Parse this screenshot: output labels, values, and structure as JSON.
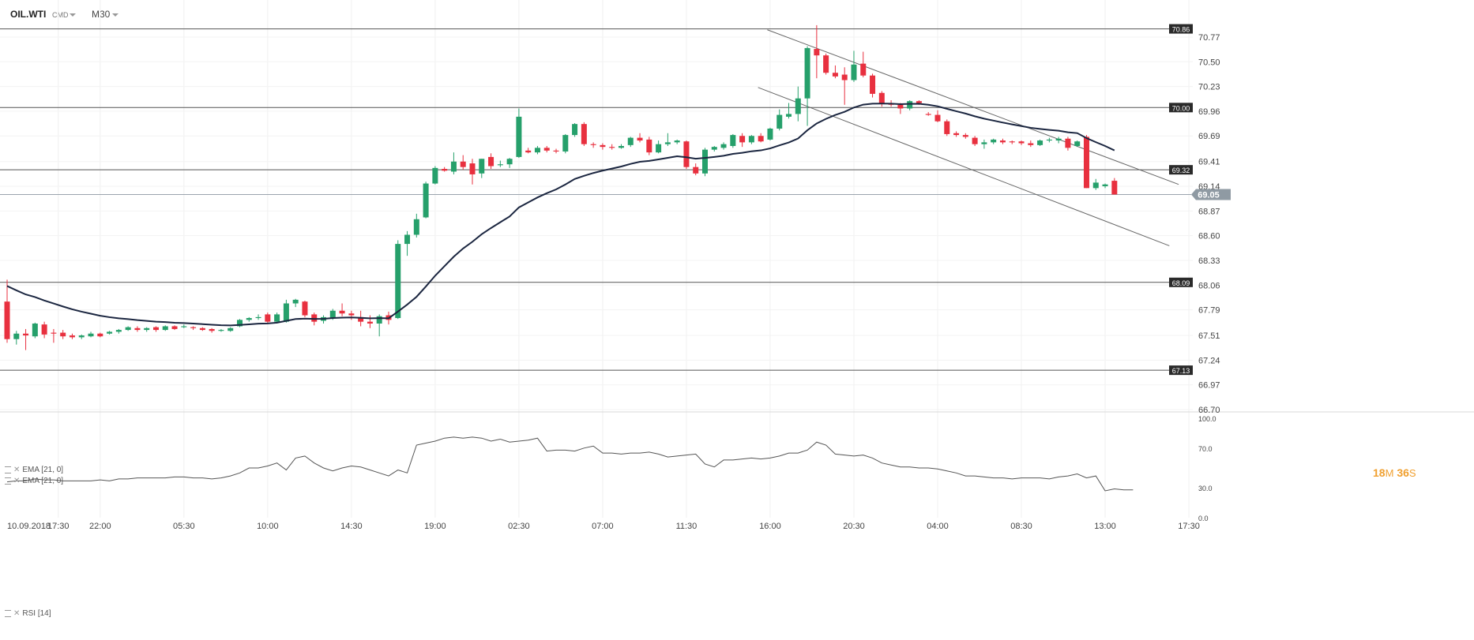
{
  "header": {
    "symbol": "OIL.WTI",
    "type": "CMD",
    "timeframe": "M30"
  },
  "price_indicators": [
    {
      "label": "EMA [21, 0]"
    },
    {
      "label": "EMA [21, 0]"
    }
  ],
  "rsi_indicator": {
    "label": "RSI [14]"
  },
  "countdown": {
    "minutes": "18",
    "min_unit": "M",
    "seconds": "36",
    "sec_unit": "S"
  },
  "colors": {
    "up": "#26a06b",
    "down": "#e8303f",
    "ema": "#1b2640",
    "level": "#555555",
    "tag_bg": "#2a2a2a",
    "current_tag_bg": "#8f9aa3"
  },
  "chart_data": {
    "type": "candlestick",
    "symbol": "OIL.WTI",
    "timeframe": "M30",
    "y_ticks": [
      70.77,
      70.5,
      70.23,
      69.96,
      69.69,
      69.41,
      69.14,
      68.87,
      68.6,
      68.33,
      68.06,
      67.79,
      67.51,
      67.24,
      66.97,
      66.7
    ],
    "ylim": [
      66.7,
      70.91
    ],
    "x_tick_labels": [
      {
        "label": "10.09.2018",
        "index": 0
      },
      {
        "label": "17:30",
        "index": 5.5
      },
      {
        "label": "22:00",
        "index": 10
      },
      {
        "label": "05:30",
        "index": 19
      },
      {
        "label": "10:00",
        "index": 28
      },
      {
        "label": "14:30",
        "index": 37
      },
      {
        "label": "19:00",
        "index": 46
      },
      {
        "label": "02:30",
        "index": 55
      },
      {
        "label": "07:00",
        "index": 64
      },
      {
        "label": "11:30",
        "index": 73
      },
      {
        "label": "16:00",
        "index": 82
      },
      {
        "label": "20:30",
        "index": 91
      },
      {
        "label": "04:00",
        "index": 100
      },
      {
        "label": "08:30",
        "index": 109
      },
      {
        "label": "13:00",
        "index": 118
      },
      {
        "label": "17:30",
        "index": 127
      }
    ],
    "horizontal_levels": [
      70.86,
      70.0,
      69.32,
      68.09,
      67.13
    ],
    "current_price": 69.05,
    "trend_lines": [
      {
        "from": [
          81.7,
          70.85
        ],
        "to": [
          125.9,
          69.16
        ]
      },
      {
        "from": [
          80.7,
          70.22
        ],
        "to": [
          124.9,
          68.49
        ]
      }
    ],
    "candles": [
      {
        "o": 67.88,
        "h": 68.12,
        "l": 67.43,
        "c": 67.47
      },
      {
        "o": 67.47,
        "h": 67.56,
        "l": 67.41,
        "c": 67.53
      },
      {
        "o": 67.53,
        "h": 67.58,
        "l": 67.35,
        "c": 67.51
      },
      {
        "o": 67.5,
        "h": 67.65,
        "l": 67.48,
        "c": 67.64
      },
      {
        "o": 67.63,
        "h": 67.66,
        "l": 67.48,
        "c": 67.52
      },
      {
        "o": 67.54,
        "h": 67.58,
        "l": 67.43,
        "c": 67.53
      },
      {
        "o": 67.54,
        "h": 67.57,
        "l": 67.47,
        "c": 67.5
      },
      {
        "o": 67.51,
        "h": 67.53,
        "l": 67.47,
        "c": 67.49
      },
      {
        "o": 67.49,
        "h": 67.52,
        "l": 67.47,
        "c": 67.51
      },
      {
        "o": 67.5,
        "h": 67.55,
        "l": 67.49,
        "c": 67.53
      },
      {
        "o": 67.53,
        "h": 67.54,
        "l": 67.49,
        "c": 67.5
      },
      {
        "o": 67.53,
        "h": 67.56,
        "l": 67.52,
        "c": 67.55
      },
      {
        "o": 67.55,
        "h": 67.58,
        "l": 67.53,
        "c": 67.57
      },
      {
        "o": 67.57,
        "h": 67.61,
        "l": 67.56,
        "c": 67.6
      },
      {
        "o": 67.59,
        "h": 67.61,
        "l": 67.55,
        "c": 67.57
      },
      {
        "o": 67.57,
        "h": 67.6,
        "l": 67.55,
        "c": 67.59
      },
      {
        "o": 67.6,
        "h": 67.61,
        "l": 67.55,
        "c": 67.57
      },
      {
        "o": 67.57,
        "h": 67.62,
        "l": 67.56,
        "c": 67.61
      },
      {
        "o": 67.61,
        "h": 67.62,
        "l": 67.57,
        "c": 67.58
      },
      {
        "o": 67.6,
        "h": 67.63,
        "l": 67.59,
        "c": 67.61
      },
      {
        "o": 67.6,
        "h": 67.61,
        "l": 67.57,
        "c": 67.59
      },
      {
        "o": 67.59,
        "h": 67.6,
        "l": 67.56,
        "c": 67.57
      },
      {
        "o": 67.58,
        "h": 67.59,
        "l": 67.54,
        "c": 67.56
      },
      {
        "o": 67.56,
        "h": 67.58,
        "l": 67.55,
        "c": 67.57
      },
      {
        "o": 67.56,
        "h": 67.6,
        "l": 67.55,
        "c": 67.59
      },
      {
        "o": 67.61,
        "h": 67.69,
        "l": 67.6,
        "c": 67.68
      },
      {
        "o": 67.68,
        "h": 67.71,
        "l": 67.66,
        "c": 67.7
      },
      {
        "o": 67.7,
        "h": 67.74,
        "l": 67.68,
        "c": 67.71
      },
      {
        "o": 67.74,
        "h": 67.76,
        "l": 67.64,
        "c": 67.66
      },
      {
        "o": 67.66,
        "h": 67.76,
        "l": 67.64,
        "c": 67.74
      },
      {
        "o": 67.66,
        "h": 67.9,
        "l": 67.65,
        "c": 67.86
      },
      {
        "o": 67.86,
        "h": 67.91,
        "l": 67.82,
        "c": 67.9
      },
      {
        "o": 67.88,
        "h": 67.89,
        "l": 67.71,
        "c": 67.73
      },
      {
        "o": 67.74,
        "h": 67.76,
        "l": 67.62,
        "c": 67.66
      },
      {
        "o": 67.67,
        "h": 67.73,
        "l": 67.64,
        "c": 67.71
      },
      {
        "o": 67.7,
        "h": 67.8,
        "l": 67.68,
        "c": 67.78
      },
      {
        "o": 67.78,
        "h": 67.86,
        "l": 67.72,
        "c": 67.75
      },
      {
        "o": 67.75,
        "h": 67.78,
        "l": 67.68,
        "c": 67.73
      },
      {
        "o": 67.71,
        "h": 67.78,
        "l": 67.61,
        "c": 67.66
      },
      {
        "o": 67.66,
        "h": 67.73,
        "l": 67.59,
        "c": 67.64
      },
      {
        "o": 67.64,
        "h": 67.74,
        "l": 67.5,
        "c": 67.72
      },
      {
        "o": 67.73,
        "h": 67.77,
        "l": 67.63,
        "c": 67.68
      },
      {
        "o": 67.7,
        "h": 68.55,
        "l": 67.69,
        "c": 68.51
      },
      {
        "o": 68.51,
        "h": 68.65,
        "l": 68.38,
        "c": 68.61
      },
      {
        "o": 68.61,
        "h": 68.84,
        "l": 68.58,
        "c": 68.78
      },
      {
        "o": 68.8,
        "h": 69.19,
        "l": 68.79,
        "c": 69.17
      },
      {
        "o": 69.17,
        "h": 69.36,
        "l": 69.16,
        "c": 69.34
      },
      {
        "o": 69.33,
        "h": 69.35,
        "l": 69.3,
        "c": 69.31
      },
      {
        "o": 69.3,
        "h": 69.51,
        "l": 69.27,
        "c": 69.41
      },
      {
        "o": 69.41,
        "h": 69.48,
        "l": 69.32,
        "c": 69.35
      },
      {
        "o": 69.39,
        "h": 69.44,
        "l": 69.16,
        "c": 69.27
      },
      {
        "o": 69.28,
        "h": 69.44,
        "l": 69.23,
        "c": 69.44
      },
      {
        "o": 69.46,
        "h": 69.5,
        "l": 69.33,
        "c": 69.36
      },
      {
        "o": 69.37,
        "h": 69.42,
        "l": 69.35,
        "c": 69.38
      },
      {
        "o": 69.38,
        "h": 69.45,
        "l": 69.34,
        "c": 69.44
      },
      {
        "o": 69.46,
        "h": 69.99,
        "l": 69.45,
        "c": 69.9
      },
      {
        "o": 69.53,
        "h": 69.56,
        "l": 69.5,
        "c": 69.51
      },
      {
        "o": 69.51,
        "h": 69.58,
        "l": 69.49,
        "c": 69.56
      },
      {
        "o": 69.56,
        "h": 69.58,
        "l": 69.51,
        "c": 69.53
      },
      {
        "o": 69.53,
        "h": 69.55,
        "l": 69.5,
        "c": 69.52
      },
      {
        "o": 69.52,
        "h": 69.71,
        "l": 69.5,
        "c": 69.7
      },
      {
        "o": 69.7,
        "h": 69.83,
        "l": 69.68,
        "c": 69.82
      },
      {
        "o": 69.82,
        "h": 69.84,
        "l": 69.58,
        "c": 69.6
      },
      {
        "o": 69.6,
        "h": 69.62,
        "l": 69.56,
        "c": 69.59
      },
      {
        "o": 69.59,
        "h": 69.61,
        "l": 69.54,
        "c": 69.57
      },
      {
        "o": 69.57,
        "h": 69.6,
        "l": 69.54,
        "c": 69.56
      },
      {
        "o": 69.56,
        "h": 69.6,
        "l": 69.55,
        "c": 69.58
      },
      {
        "o": 69.59,
        "h": 69.68,
        "l": 69.57,
        "c": 69.67
      },
      {
        "o": 69.67,
        "h": 69.72,
        "l": 69.62,
        "c": 69.64
      },
      {
        "o": 69.65,
        "h": 69.68,
        "l": 69.48,
        "c": 69.51
      },
      {
        "o": 69.51,
        "h": 69.64,
        "l": 69.5,
        "c": 69.6
      },
      {
        "o": 69.6,
        "h": 69.72,
        "l": 69.58,
        "c": 69.62
      },
      {
        "o": 69.62,
        "h": 69.65,
        "l": 69.6,
        "c": 69.64
      },
      {
        "o": 69.63,
        "h": 69.64,
        "l": 69.33,
        "c": 69.35
      },
      {
        "o": 69.35,
        "h": 69.39,
        "l": 69.26,
        "c": 69.28
      },
      {
        "o": 69.28,
        "h": 69.56,
        "l": 69.25,
        "c": 69.54
      },
      {
        "o": 69.54,
        "h": 69.58,
        "l": 69.52,
        "c": 69.57
      },
      {
        "o": 69.56,
        "h": 69.62,
        "l": 69.54,
        "c": 69.6
      },
      {
        "o": 69.58,
        "h": 69.71,
        "l": 69.56,
        "c": 69.7
      },
      {
        "o": 69.69,
        "h": 69.72,
        "l": 69.57,
        "c": 69.62
      },
      {
        "o": 69.62,
        "h": 69.7,
        "l": 69.6,
        "c": 69.69
      },
      {
        "o": 69.69,
        "h": 69.72,
        "l": 69.62,
        "c": 69.63
      },
      {
        "o": 69.65,
        "h": 69.78,
        "l": 69.64,
        "c": 69.77
      },
      {
        "o": 69.77,
        "h": 69.98,
        "l": 69.75,
        "c": 69.92
      },
      {
        "o": 69.9,
        "h": 70.05,
        "l": 69.88,
        "c": 69.93
      },
      {
        "o": 69.93,
        "h": 70.23,
        "l": 69.85,
        "c": 70.1
      },
      {
        "o": 70.1,
        "h": 70.67,
        "l": 69.8,
        "c": 70.65
      },
      {
        "o": 70.64,
        "h": 70.9,
        "l": 70.32,
        "c": 70.57
      },
      {
        "o": 70.57,
        "h": 70.59,
        "l": 70.36,
        "c": 70.38
      },
      {
        "o": 70.38,
        "h": 70.46,
        "l": 70.32,
        "c": 70.34
      },
      {
        "o": 70.36,
        "h": 70.44,
        "l": 70.03,
        "c": 70.3
      },
      {
        "o": 70.3,
        "h": 70.62,
        "l": 70.28,
        "c": 70.47
      },
      {
        "o": 70.48,
        "h": 70.61,
        "l": 70.33,
        "c": 70.35
      },
      {
        "o": 70.35,
        "h": 70.37,
        "l": 70.11,
        "c": 70.15
      },
      {
        "o": 70.16,
        "h": 70.18,
        "l": 70.01,
        "c": 70.05
      },
      {
        "o": 70.05,
        "h": 70.08,
        "l": 70.01,
        "c": 70.03
      },
      {
        "o": 70.03,
        "h": 70.05,
        "l": 69.93,
        "c": 69.99
      },
      {
        "o": 69.99,
        "h": 70.08,
        "l": 69.97,
        "c": 70.07
      },
      {
        "o": 70.07,
        "h": 70.08,
        "l": 70.03,
        "c": 70.05
      },
      {
        "o": 69.93,
        "h": 69.95,
        "l": 69.91,
        "c": 69.92
      },
      {
        "o": 69.92,
        "h": 69.97,
        "l": 69.84,
        "c": 69.85
      },
      {
        "o": 69.85,
        "h": 69.87,
        "l": 69.69,
        "c": 69.71
      },
      {
        "o": 69.72,
        "h": 69.74,
        "l": 69.68,
        "c": 69.7
      },
      {
        "o": 69.7,
        "h": 69.72,
        "l": 69.66,
        "c": 69.68
      },
      {
        "o": 69.67,
        "h": 69.69,
        "l": 69.58,
        "c": 69.6
      },
      {
        "o": 69.6,
        "h": 69.65,
        "l": 69.55,
        "c": 69.62
      },
      {
        "o": 69.62,
        "h": 69.66,
        "l": 69.6,
        "c": 69.65
      },
      {
        "o": 69.64,
        "h": 69.66,
        "l": 69.6,
        "c": 69.62
      },
      {
        "o": 69.63,
        "h": 69.64,
        "l": 69.6,
        "c": 69.62
      },
      {
        "o": 69.63,
        "h": 69.64,
        "l": 69.59,
        "c": 69.61
      },
      {
        "o": 69.61,
        "h": 69.64,
        "l": 69.57,
        "c": 69.59
      },
      {
        "o": 69.59,
        "h": 69.65,
        "l": 69.58,
        "c": 69.64
      },
      {
        "o": 69.64,
        "h": 69.67,
        "l": 69.62,
        "c": 69.65
      },
      {
        "o": 69.64,
        "h": 69.68,
        "l": 69.61,
        "c": 69.66
      },
      {
        "o": 69.66,
        "h": 69.68,
        "l": 69.53,
        "c": 69.56
      },
      {
        "o": 69.58,
        "h": 69.64,
        "l": 69.57,
        "c": 69.63
      },
      {
        "o": 69.68,
        "h": 69.7,
        "l": 69.12,
        "c": 69.12
      },
      {
        "o": 69.12,
        "h": 69.22,
        "l": 69.1,
        "c": 69.18
      },
      {
        "o": 69.14,
        "h": 69.17,
        "l": 69.12,
        "c": 69.16
      },
      {
        "o": 69.2,
        "h": 69.23,
        "l": 69.05,
        "c": 69.05
      }
    ],
    "ema_period": 21,
    "rsi": {
      "period": 14,
      "y_ticks": [
        100.0,
        70.0,
        30.0,
        0.0
      ],
      "ylim": [
        0,
        100
      ],
      "values": [
        36,
        37,
        37,
        39,
        38,
        38,
        37,
        37,
        37,
        37,
        38,
        37,
        39,
        39,
        40,
        40,
        40,
        40,
        41,
        41,
        40,
        40,
        39,
        40,
        42,
        45,
        50,
        50,
        52,
        55,
        48,
        60,
        62,
        55,
        50,
        47,
        50,
        52,
        51,
        48,
        45,
        42,
        48,
        45,
        73,
        75,
        77,
        80,
        81,
        80,
        81,
        80,
        77,
        79,
        76,
        77,
        78,
        80,
        67,
        68,
        68,
        67,
        70,
        72,
        65,
        65,
        64,
        65,
        65,
        66,
        64,
        61,
        62,
        63,
        64,
        54,
        51,
        58,
        58,
        59,
        60,
        59,
        60,
        62,
        65,
        65,
        68,
        76,
        73,
        64,
        63,
        62,
        63,
        60,
        55,
        53,
        51,
        51,
        50,
        50,
        49,
        47,
        45,
        42,
        42,
        41,
        40,
        40,
        39,
        40,
        40,
        40,
        39,
        41,
        42,
        44,
        40,
        42,
        27,
        29,
        28,
        28
      ]
    }
  }
}
